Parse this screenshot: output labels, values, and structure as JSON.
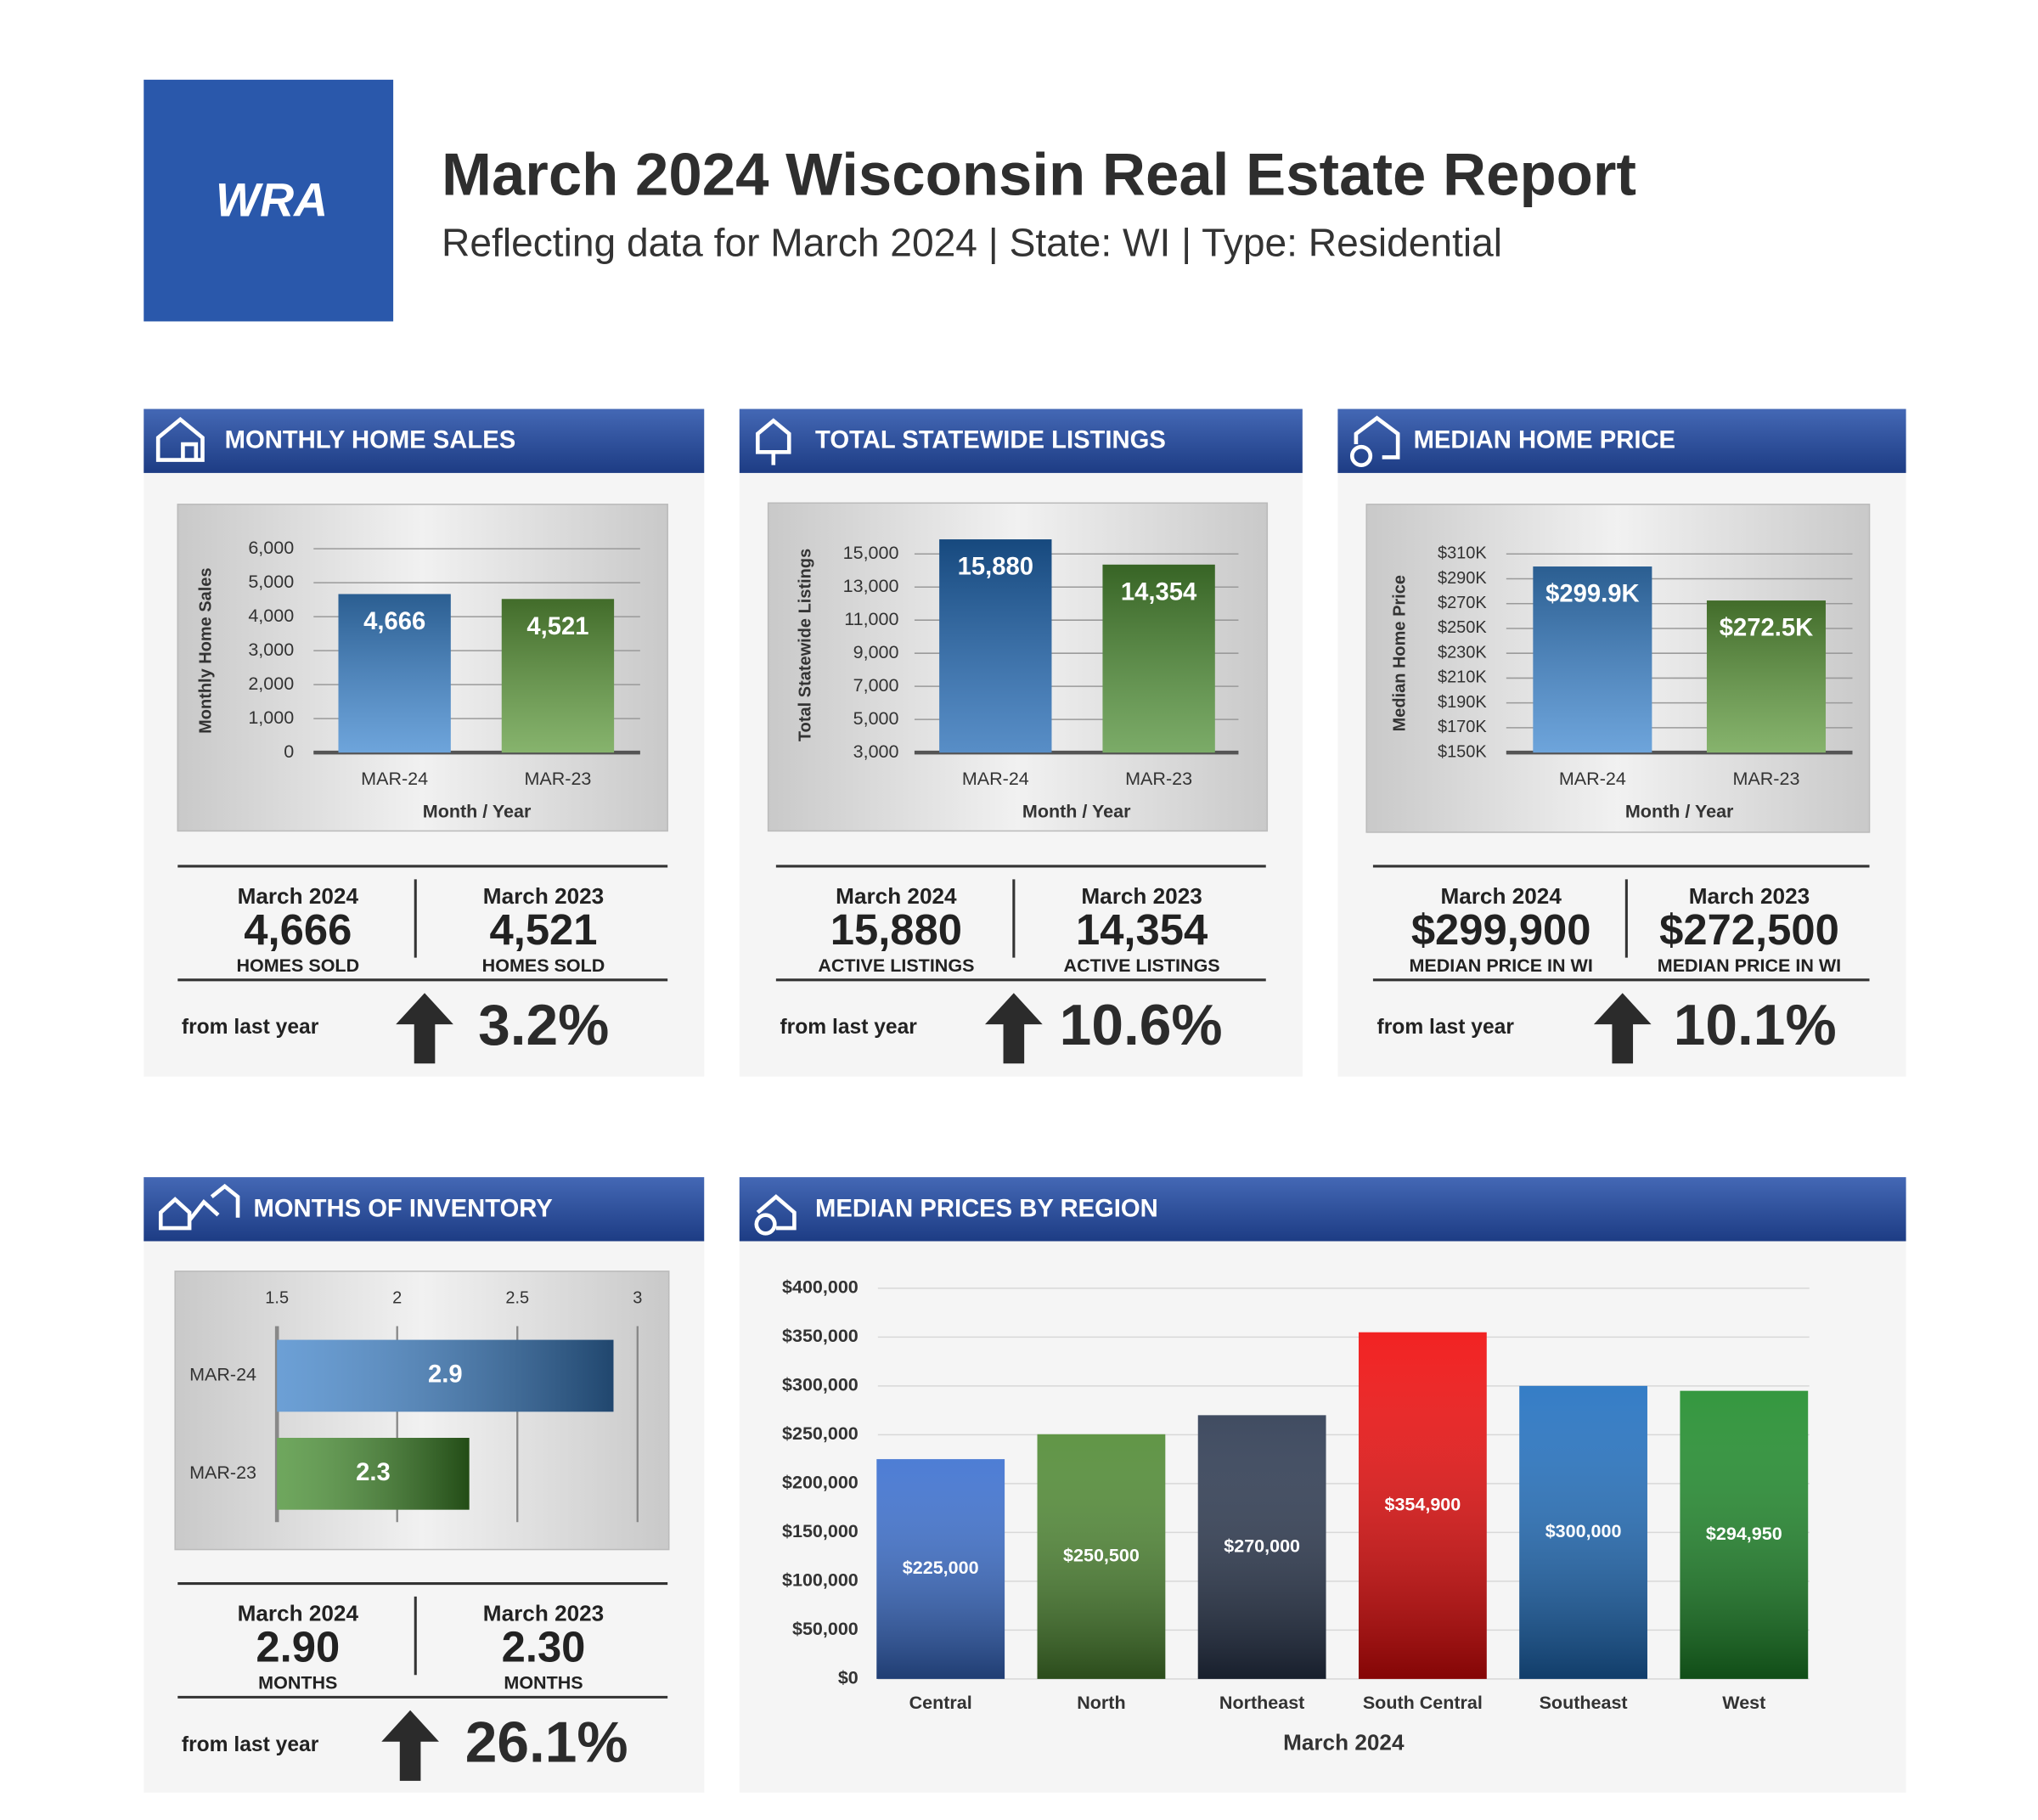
{
  "header": {
    "logo": "WRA",
    "title": "March 2024 Wisconsin Real Estate Report",
    "subtitle": "Reflecting data for March 2024 | State: WI | Type: Residential"
  },
  "panels": [
    {
      "title": "MONTHLY HOME SALES",
      "stats": [
        {
          "period": "March 2024",
          "value": "4,666",
          "unit": "HOMES SOLD"
        },
        {
          "period": "March 2023",
          "value": "4,521",
          "unit": "HOMES SOLD"
        }
      ],
      "change_label": "from last year",
      "change": "3.2%"
    },
    {
      "title": "TOTAL STATEWIDE LISTINGS",
      "stats": [
        {
          "period": "March 2024",
          "value": "15,880",
          "unit": "ACTIVE LISTINGS"
        },
        {
          "period": "March 2023",
          "value": "14,354",
          "unit": "ACTIVE LISTINGS"
        }
      ],
      "change_label": "from last year",
      "change": "10.6%"
    },
    {
      "title": "MEDIAN HOME PRICE",
      "stats": [
        {
          "period": "March 2024",
          "value": "$299,900",
          "unit": "MEDIAN PRICE IN WI"
        },
        {
          "period": "March 2023",
          "value": "$272,500",
          "unit": "MEDIAN PRICE IN WI"
        }
      ],
      "change_label": "from last year",
      "change": "10.1%"
    },
    {
      "title": "MONTHS OF INVENTORY",
      "stats": [
        {
          "period": "March 2024",
          "value": "2.90",
          "unit": "MONTHS"
        },
        {
          "period": "March 2023",
          "value": "2.30",
          "unit": "MONTHS"
        }
      ],
      "change_label": "from last year",
      "change": "26.1%"
    },
    {
      "title": "MEDIAN PRICES BY REGION"
    }
  ],
  "chart_data": [
    {
      "type": "bar",
      "categories": [
        "MAR-24",
        "MAR-23"
      ],
      "values": [
        4666,
        4521
      ],
      "value_labels": [
        "4,666",
        "4,521"
      ],
      "colors": [
        "#3d86cf",
        "#5e9a3c"
      ],
      "ylim": [
        0,
        6000
      ],
      "yticks": [
        0,
        {
          "value": 1000,
          "label": "1,000"
        },
        {
          "value": 2000,
          "label": "2,000"
        },
        {
          "value": 3000,
          "label": "3,000"
        },
        {
          "value": 4000,
          "label": "4,000"
        },
        {
          "value": 5000,
          "label": "5,000"
        },
        {
          "value": 6000,
          "label": "6,000"
        }
      ],
      "ylabel": "Monthly Home Sales",
      "xlabel": "Month / Year"
    },
    {
      "type": "bar",
      "categories": [
        "MAR-24",
        "MAR-23"
      ],
      "values": [
        15880,
        14354
      ],
      "value_labels": [
        "15,880",
        "14,354"
      ],
      "colors": [
        "#2068b4",
        "#4f8f35"
      ],
      "ylim": [
        3000,
        16000
      ],
      "yticks": [
        {
          "value": 3000,
          "label": "3,000"
        },
        {
          "value": 5000,
          "label": "5,000"
        },
        {
          "value": 7000,
          "label": "7,000"
        },
        {
          "value": 9000,
          "label": "9,000"
        },
        {
          "value": 11000,
          "label": "11,000"
        },
        {
          "value": 13000,
          "label": "13,000"
        },
        {
          "value": 15000,
          "label": "15,000"
        }
      ],
      "ylabel": "Total Statewide Listings",
      "xlabel": "Month / Year"
    },
    {
      "type": "bar",
      "categories": [
        "MAR-24",
        "MAR-23"
      ],
      "values": [
        299900,
        272500
      ],
      "value_labels": [
        "$299.9K",
        "$272.5K"
      ],
      "colors": [
        "#3d86cf",
        "#5e9a3c"
      ],
      "ylim": [
        150000,
        310000
      ],
      "yticks": [
        {
          "value": 150000,
          "label": "$150K"
        },
        {
          "value": 170000,
          "label": "$170K"
        },
        {
          "value": 190000,
          "label": "$190K"
        },
        {
          "value": 210000,
          "label": "$210K"
        },
        {
          "value": 230000,
          "label": "$230K"
        },
        {
          "value": 250000,
          "label": "$250K"
        },
        {
          "value": 270000,
          "label": "$270K"
        },
        {
          "value": 290000,
          "label": "$290K"
        },
        {
          "value": 310000,
          "label": "$310K"
        }
      ],
      "ylabel": "Median Home Price",
      "xlabel": "Month / Year"
    },
    {
      "type": "hbar",
      "categories": [
        "MAR-24",
        "MAR-23"
      ],
      "values": [
        2.9,
        2.3
      ],
      "colors": [
        "#3b80c8",
        "#3f8a28"
      ],
      "xlim": [
        1.5,
        3
      ],
      "xticks": [
        1.5,
        2,
        2.5,
        3
      ]
    },
    {
      "type": "bar",
      "categories": [
        "Central",
        "North",
        "Northeast",
        "South Central",
        "Southeast",
        "West"
      ],
      "values": [
        225000,
        250500,
        270000,
        354900,
        300000,
        294950
      ],
      "value_labels": [
        "$225,000",
        "$250,500",
        "$270,000",
        "$354,900",
        "$300,000",
        "$294,950"
      ],
      "colors": [
        "#3a6fd0",
        "#4f8a32",
        "#2b3850",
        "#f00a0a",
        "#1f6fc0",
        "#1e8c2a"
      ],
      "ylim": [
        0,
        400000
      ],
      "yticks": [
        {
          "value": 0,
          "label": "$0"
        },
        {
          "value": 50000,
          "label": "$50,000"
        },
        {
          "value": 100000,
          "label": "$100,000"
        },
        {
          "value": 150000,
          "label": "$150,000"
        },
        {
          "value": 200000,
          "label": "$200,000"
        },
        {
          "value": 250000,
          "label": "$250,000"
        },
        {
          "value": 300000,
          "label": "$300,000"
        },
        {
          "value": 350000,
          "label": "$350,000"
        },
        {
          "value": 400000,
          "label": "$400,000"
        }
      ],
      "xlabel": "March 2024"
    }
  ]
}
